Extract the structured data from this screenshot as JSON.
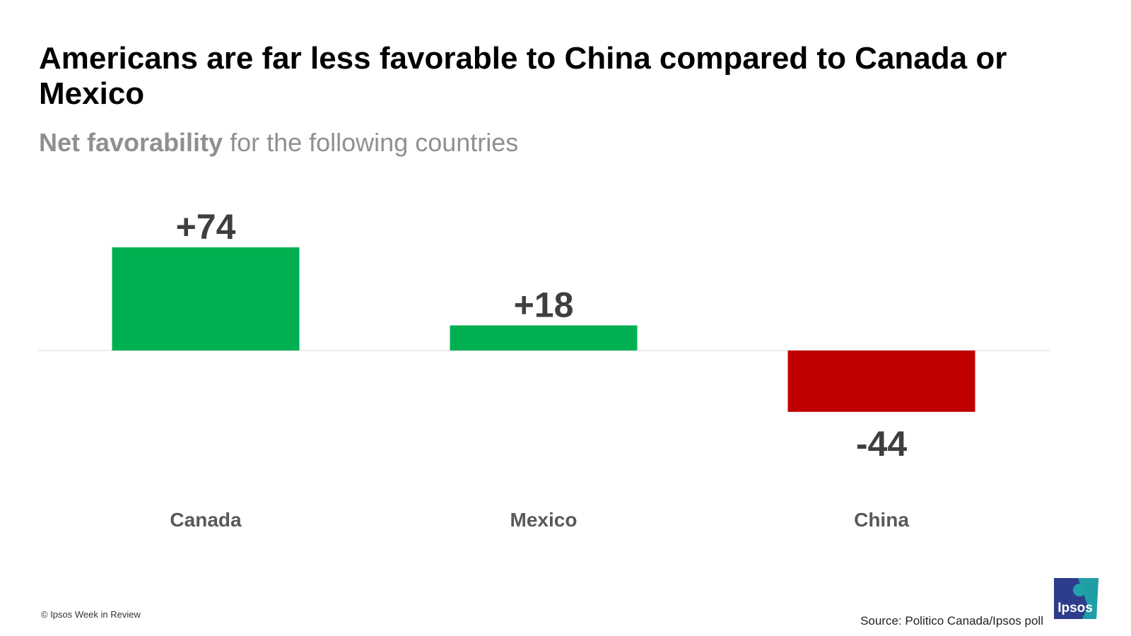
{
  "header": {
    "title": "Americans are far less favorable to China compared to Canada or Mexico",
    "subtitle_bold": "Net favorability",
    "subtitle_rest": " for the following countries"
  },
  "chart_data": {
    "type": "bar",
    "categories": [
      "Canada",
      "Mexico",
      "China"
    ],
    "values": [
      74,
      18,
      -44
    ],
    "value_labels": [
      "+74",
      "+18",
      "-44"
    ],
    "colors": [
      "#00b050",
      "#00b050",
      "#c00000"
    ],
    "ylim": [
      -44,
      74
    ],
    "grid": false,
    "legend": "none"
  },
  "footer": {
    "copyright": "© Ipsos Week in Review",
    "source": "Source: Politico Canada/Ipsos poll",
    "logo_text": "Ipsos"
  },
  "colors": {
    "positive": "#00b050",
    "negative": "#c00000",
    "label_text": "#3f3f3f",
    "category_text": "#595959",
    "logo_blue": "#2e3c8c",
    "logo_teal": "#1fa3a8"
  }
}
